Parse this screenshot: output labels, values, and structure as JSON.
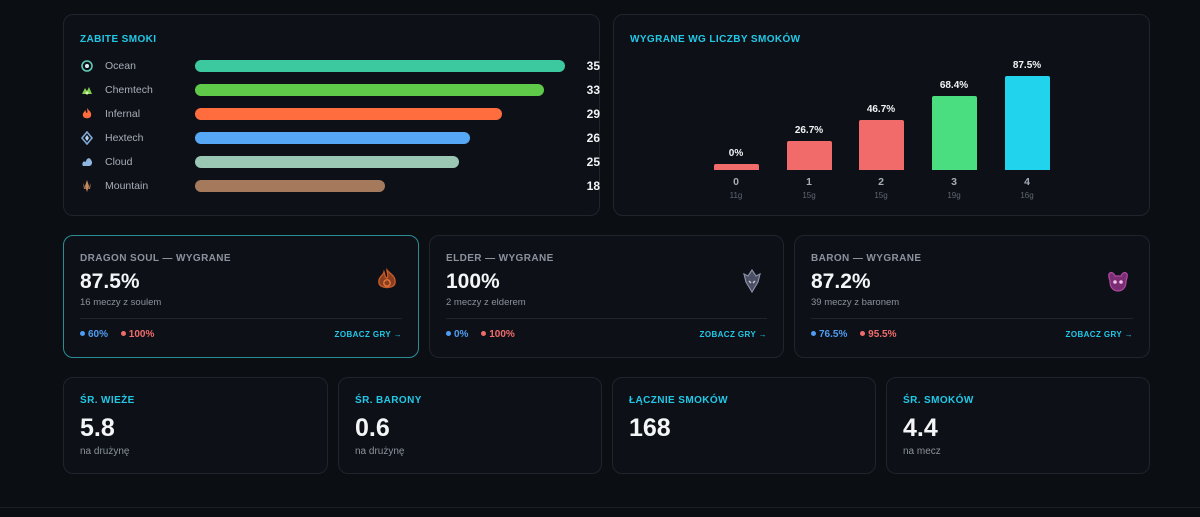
{
  "dragons_card": {
    "title": "ZABITE SMOKI",
    "max": 35,
    "items": [
      {
        "name": "Ocean",
        "value": "35",
        "n": 35,
        "color": "#3cc9a0",
        "icon": "ocean-dragon-icon"
      },
      {
        "name": "Chemtech",
        "value": "33",
        "n": 33,
        "color": "#5fc94a",
        "icon": "chemtech-dragon-icon"
      },
      {
        "name": "Infernal",
        "value": "29",
        "n": 29,
        "color": "#ff6d3f",
        "icon": "infernal-dragon-icon"
      },
      {
        "name": "Hextech",
        "value": "26",
        "n": 26,
        "color": "#56a8f7",
        "icon": "hextech-dragon-icon"
      },
      {
        "name": "Cloud",
        "value": "25",
        "n": 25,
        "color": "#9bc8b4",
        "icon": "cloud-dragon-icon"
      },
      {
        "name": "Mountain",
        "value": "18",
        "n": 18,
        "color": "#a57a5c",
        "icon": "mountain-dragon-icon"
      }
    ]
  },
  "wins_card": {
    "title": "WYGRANE WG LICZBY SMOKÓW"
  },
  "chart_data": {
    "type": "bar",
    "title": "WYGRANE WG LICZBY SMOKÓW",
    "categories": [
      "0",
      "1",
      "2",
      "3",
      "4"
    ],
    "values": [
      0,
      26.7,
      46.7,
      68.4,
      87.5
    ],
    "value_labels": [
      "0%",
      "26.7%",
      "46.7%",
      "68.4%",
      "87.5%"
    ],
    "games": [
      "11g",
      "15g",
      "15g",
      "19g",
      "16g"
    ],
    "colors": [
      "#f26b6b",
      "#f26b6b",
      "#f26b6b",
      "#4ade80",
      "#22d3ee"
    ],
    "ylim": [
      0,
      100
    ],
    "grid": false
  },
  "objectives": [
    {
      "label": "DRAGON SOUL — WYGRANE",
      "value": "87.5%",
      "sub": "16 meczy z soulem",
      "stat_a": "60%",
      "stat_b": "100%",
      "link": "ZOBACZ GRY →",
      "icon": "dragon-soul-icon"
    },
    {
      "label": "ELDER — WYGRANE",
      "value": "100%",
      "sub": "2 meczy z elderem",
      "stat_a": "0%",
      "stat_b": "100%",
      "link": "ZOBACZ GRY →",
      "icon": "elder-dragon-icon"
    },
    {
      "label": "BARON — WYGRANE",
      "value": "87.2%",
      "sub": "39 meczy z baronem",
      "stat_a": "76.5%",
      "stat_b": "95.5%",
      "link": "ZOBACZ GRY →",
      "icon": "baron-icon"
    }
  ],
  "stats": [
    {
      "label": "ŚR. WIEŻE",
      "value": "5.8",
      "sub": "na drużynę"
    },
    {
      "label": "ŚR. BARONY",
      "value": "0.6",
      "sub": "na drużynę"
    },
    {
      "label": "ŁĄCZNIE SMOKÓW",
      "value": "168",
      "sub": ""
    },
    {
      "label": "ŚR. SMOKÓW",
      "value": "4.4",
      "sub": "na mecz"
    }
  ],
  "colors": {
    "accent": "#22c8e8",
    "blue_side": "#4f9cf5",
    "red_side": "#f26b6b"
  }
}
